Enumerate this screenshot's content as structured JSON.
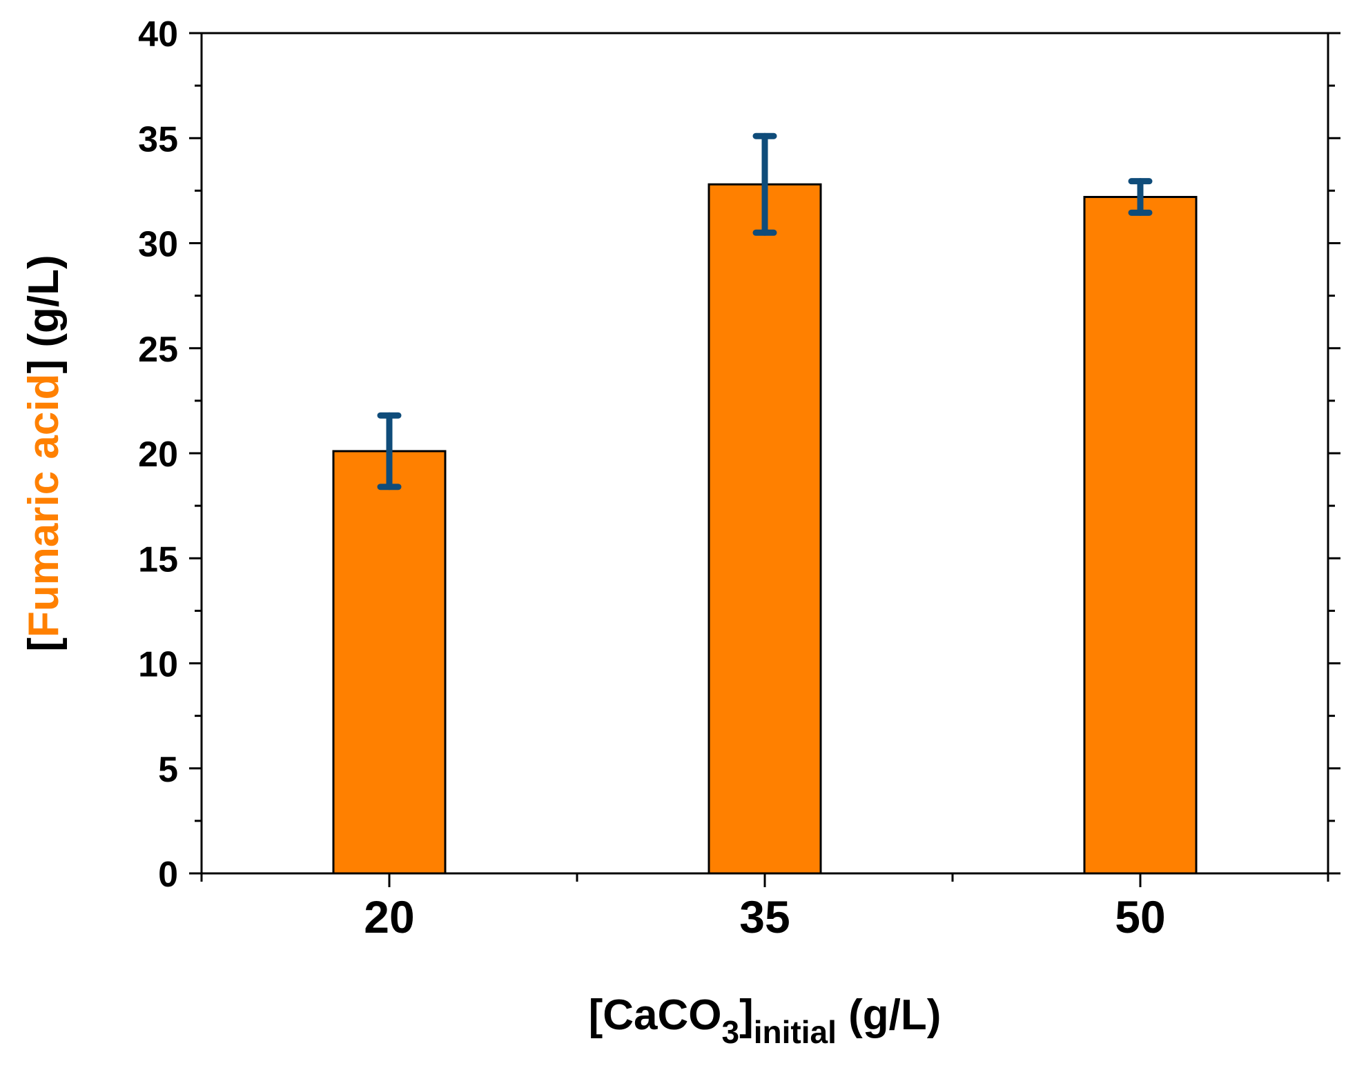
{
  "chart_data": {
    "type": "bar",
    "categories": [
      "20",
      "35",
      "50"
    ],
    "values": [
      20.1,
      32.8,
      32.2
    ],
    "errors": [
      1.7,
      2.3,
      0.75
    ],
    "ylim": [
      0,
      40
    ],
    "y_major_ticks": [
      0,
      5,
      10,
      15,
      20,
      25,
      30,
      35,
      40
    ],
    "y_minor_step": 2.5,
    "ylabel": {
      "open_bracket": "[",
      "highlight": "Fumaric acid",
      "close_bracket": "]",
      "unit": " (g/L)"
    },
    "xlabel": {
      "open_bracket": "[CaCO",
      "subscript_number": "3",
      "close_bracket": "]",
      "subscript_text": "initial",
      "unit": " (g/L)"
    },
    "title": "",
    "grid": false,
    "legend": "none",
    "colors": {
      "bar_fill": "#FF8000",
      "bar_stroke": "#000000",
      "error_bar": "#0F4C7A",
      "ylabel_highlight": "#FF8000",
      "axis": "#000000",
      "text": "#000000"
    }
  }
}
